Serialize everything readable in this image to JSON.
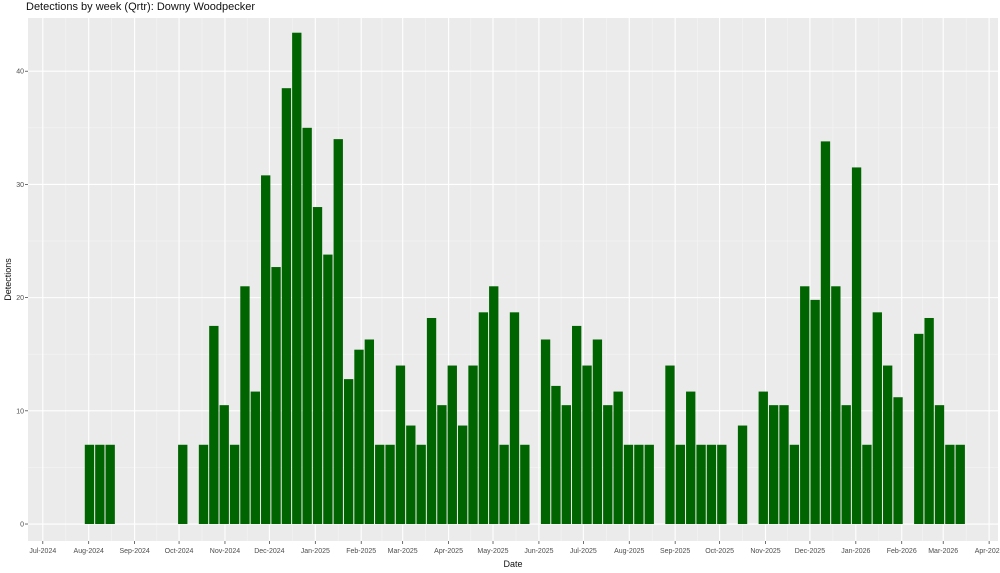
{
  "chart_data": {
    "type": "bar",
    "title": "Detections by week (Qrtr): Downy Woodpecker",
    "xlabel": "Date",
    "ylabel": "Detections",
    "ylim": [
      -1.5,
      44.7
    ],
    "y_ticks": [
      0,
      10,
      20,
      30,
      40
    ],
    "x_ticks": [
      "Jul-2024",
      "Aug-2024",
      "Sep-2024",
      "Oct-2024",
      "Nov-2024",
      "Dec-2024",
      "Jan-2025",
      "Feb-2025",
      "Mar-2025",
      "Apr-2025",
      "May-2025",
      "Jun-2025",
      "Jul-2025",
      "Aug-2025",
      "Sep-2025",
      "Oct-2025",
      "Nov-2025",
      "Dec-2025",
      "Jan-2026",
      "Feb-2026",
      "Mar-2026",
      "Apr-2026"
    ],
    "x_range": [
      "2024-06-21",
      "2026-04-07"
    ],
    "bar_color": "#006400",
    "panel_color": "#ebebeb",
    "grid": true,
    "legend": "none",
    "series": [
      {
        "x": [
          "2024-07-29",
          "2024-08-05",
          "2024-08-12",
          "2024-09-30",
          "2024-10-14",
          "2024-10-21",
          "2024-10-28",
          "2024-11-04",
          "2024-11-11",
          "2024-11-18",
          "2024-11-25",
          "2024-12-02",
          "2024-12-09",
          "2024-12-16",
          "2024-12-23",
          "2024-12-30",
          "2025-01-06",
          "2025-01-13",
          "2025-01-20",
          "2025-01-27",
          "2025-02-03",
          "2025-02-10",
          "2025-02-17",
          "2025-02-24",
          "2025-03-03",
          "2025-03-10",
          "2025-03-17",
          "2025-03-24",
          "2025-03-31",
          "2025-04-07",
          "2025-04-14",
          "2025-04-21",
          "2025-04-28",
          "2025-05-05",
          "2025-05-12",
          "2025-05-19",
          "2025-06-02",
          "2025-06-09",
          "2025-06-16",
          "2025-06-23",
          "2025-06-30",
          "2025-07-07",
          "2025-07-14",
          "2025-07-21",
          "2025-07-28",
          "2025-08-04",
          "2025-08-11",
          "2025-08-25",
          "2025-09-01",
          "2025-09-08",
          "2025-09-15",
          "2025-09-22",
          "2025-09-29",
          "2025-10-13",
          "2025-10-27",
          "2025-11-03",
          "2025-11-10",
          "2025-11-17",
          "2025-11-24",
          "2025-12-01",
          "2025-12-08",
          "2025-12-15",
          "2025-12-22",
          "2025-12-29",
          "2026-01-05",
          "2026-01-12",
          "2026-01-19",
          "2026-01-26",
          "2026-02-09",
          "2026-02-16",
          "2026-02-23",
          "2026-03-02",
          "2026-03-09"
        ],
        "values": [
          7,
          7,
          7,
          7,
          7,
          17.5,
          10.5,
          7,
          21,
          11.7,
          30.8,
          22.7,
          38.5,
          43.4,
          35,
          28,
          23.8,
          34,
          12.8,
          15.4,
          16.3,
          7,
          7,
          14,
          8.7,
          7,
          18.2,
          10.5,
          14,
          8.7,
          14,
          18.7,
          21,
          7,
          18.7,
          7,
          16.3,
          12.2,
          10.5,
          17.5,
          14,
          16.3,
          10.5,
          11.7,
          7,
          7,
          7,
          14,
          7,
          11.7,
          7,
          7,
          7,
          8.7,
          11.7,
          10.5,
          10.5,
          7,
          21,
          19.8,
          33.8,
          21,
          10.5,
          31.5,
          7,
          18.7,
          14,
          11.2,
          16.8,
          18.2,
          10.5,
          7,
          7
        ]
      }
    ]
  }
}
